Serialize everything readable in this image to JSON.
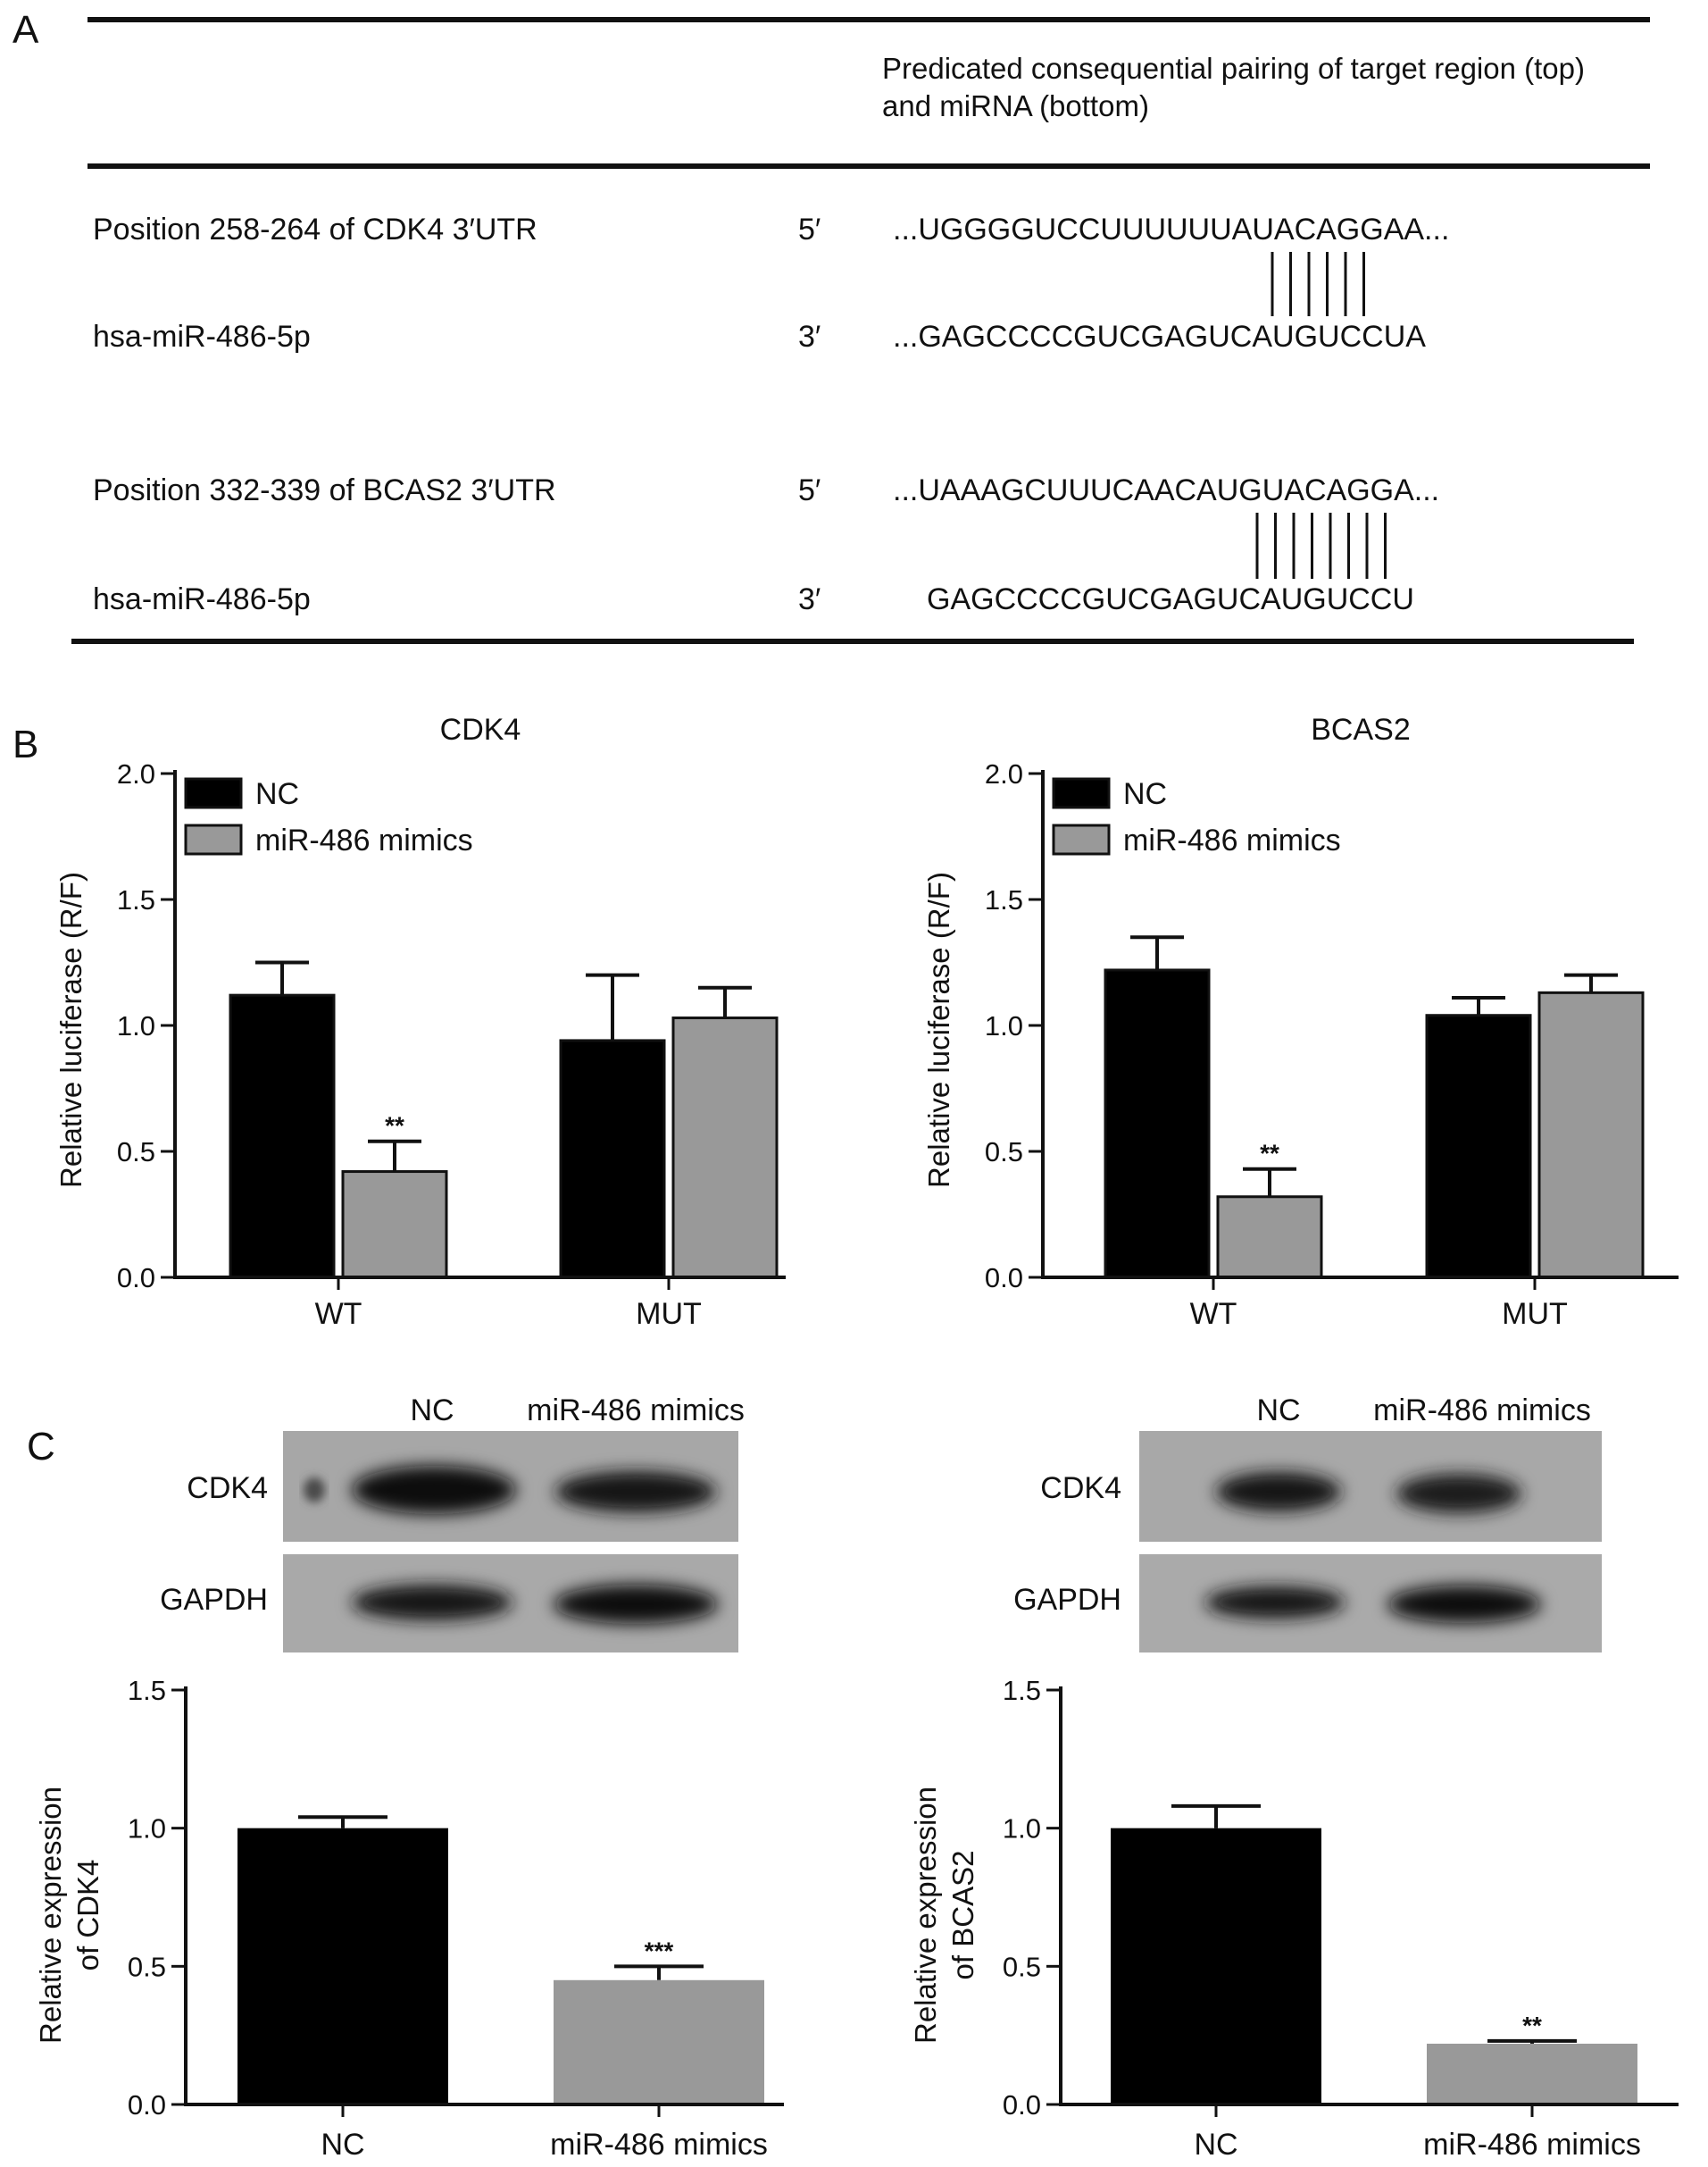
{
  "panels": {
    "a": "A",
    "b": "B",
    "c": "C"
  },
  "panel_a": {
    "header_line1": "Predicated consequential pairing of target region (top)",
    "header_line2": "and miRNA (bottom)",
    "rows": [
      {
        "label": "Position 258-264 of CDK4 3′UTR",
        "end": "5′",
        "seq": "...UGGGGUCCUUUUUUAUACAGGAA..."
      },
      {
        "label": "hsa-miR-486-5p",
        "end": "3′",
        "seq": "...GAGCCCCGUCGAGUCAUGUCCUA"
      },
      {
        "label": "Position 332-339 of BCAS2 3′UTR",
        "end": "5′",
        "seq": "...UAAAGCUUUCAACAUGUACAGGA..."
      },
      {
        "label": "hsa-miR-486-5p",
        "end": "3′",
        "seq": "GAGCCCCGUCGAGUCAUGUCCU"
      }
    ],
    "pairs": [
      6,
      8
    ]
  },
  "chart_data": [
    {
      "type": "bar",
      "title": "CDK4",
      "ylabel": "Relative luciferase (R/F)",
      "categories": [
        "WT",
        "MUT"
      ],
      "series": [
        {
          "name": "NC",
          "values": [
            1.12,
            0.94
          ],
          "errors": [
            0.13,
            0.26
          ]
        },
        {
          "name": "miR-486 mimics",
          "values": [
            0.42,
            1.03
          ],
          "errors": [
            0.12,
            0.12
          ]
        }
      ],
      "annotations": [
        {
          "category": 0,
          "series": 1,
          "text": "**"
        }
      ],
      "ylim": [
        0,
        2.0
      ],
      "yticks": [
        "0.0",
        "0.5",
        "1.0",
        "1.5",
        "2.0"
      ],
      "legend": "top-left",
      "colors": [
        "#000000",
        "#999999"
      ]
    },
    {
      "type": "bar",
      "title": "BCAS2",
      "ylabel": "Relative luciferase (R/F)",
      "categories": [
        "WT",
        "MUT"
      ],
      "series": [
        {
          "name": "NC",
          "values": [
            1.22,
            1.04
          ],
          "errors": [
            0.13,
            0.07
          ]
        },
        {
          "name": "miR-486 mimics",
          "values": [
            0.32,
            1.13
          ],
          "errors": [
            0.11,
            0.07
          ]
        }
      ],
      "annotations": [
        {
          "category": 0,
          "series": 1,
          "text": "**"
        }
      ],
      "ylim": [
        0,
        2.0
      ],
      "yticks": [
        "0.0",
        "0.5",
        "1.0",
        "1.5",
        "2.0"
      ],
      "legend": "top-left",
      "colors": [
        "#000000",
        "#999999"
      ]
    },
    {
      "type": "bar",
      "title": "",
      "ylabel_lines": [
        "Relative expression",
        "of CDK4"
      ],
      "categories": [
        "NC",
        "miR-486 mimics"
      ],
      "values": [
        1.0,
        0.45
      ],
      "errors": [
        0.04,
        0.05
      ],
      "annotations": [
        {
          "index": 1,
          "text": "***"
        }
      ],
      "ylim": [
        0,
        1.5
      ],
      "yticks": [
        "0.0",
        "0.5",
        "1.0",
        "1.5"
      ],
      "colors": [
        "#000000",
        "#999999"
      ]
    },
    {
      "type": "bar",
      "title": "",
      "ylabel_lines": [
        "Relative expression",
        "of BCAS2"
      ],
      "categories": [
        "NC",
        "miR-486 mimics"
      ],
      "values": [
        1.0,
        0.22
      ],
      "errors": [
        0.08,
        0.01
      ],
      "annotations": [
        {
          "index": 1,
          "text": "**"
        }
      ],
      "ylim": [
        0,
        1.5
      ],
      "yticks": [
        "0.0",
        "0.5",
        "1.0",
        "1.5"
      ],
      "colors": [
        "#000000",
        "#999999"
      ]
    }
  ],
  "blots": [
    {
      "lanes": [
        "NC",
        "miR-486 mimics"
      ],
      "rows": [
        "CDK4",
        "GAPDH"
      ]
    },
    {
      "lanes": [
        "NC",
        "miR-486 mimics"
      ],
      "rows": [
        "CDK4",
        "GAPDH"
      ]
    }
  ]
}
